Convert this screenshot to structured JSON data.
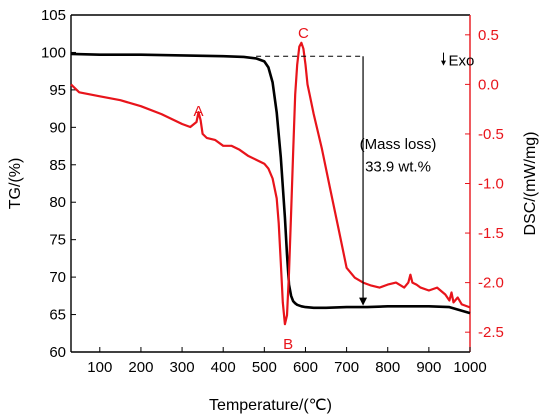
{
  "colors": {
    "tg": "#000000",
    "dsc": "#e8141b",
    "axis": "#000000"
  },
  "chart_data": {
    "type": "line",
    "xlabel": "Temperature/(℃)",
    "ylabel_left": "TG/(%)",
    "ylabel_right": "DSC/(mW/mg)",
    "xlim": [
      30,
      1000
    ],
    "ylim_left": [
      60,
      105
    ],
    "ylim_right": [
      -2.7,
      0.7
    ],
    "x_ticks": [
      100,
      200,
      300,
      400,
      500,
      600,
      700,
      800,
      900,
      1000
    ],
    "y_left_ticks": [
      60,
      65,
      70,
      75,
      80,
      85,
      90,
      95,
      100,
      105
    ],
    "y_right_ticks": [
      -2.5,
      -2.0,
      -1.5,
      -1.0,
      -0.5,
      0.0,
      0.5
    ],
    "y_right_tick_labels": [
      "-2.5",
      "-2.0",
      "-1.5",
      "-1.0",
      "-0.5",
      "0.0",
      "0.5"
    ],
    "grid": false,
    "series": [
      {
        "axis": "left",
        "color": "#000000",
        "x": [
          30,
          100,
          200,
          300,
          400,
          450,
          480,
          500,
          510,
          520,
          530,
          540,
          550,
          555,
          560,
          565,
          570,
          575,
          580,
          590,
          600,
          620,
          650,
          700,
          750,
          800,
          850,
          900,
          950,
          1000
        ],
        "y": [
          99.8,
          99.7,
          99.7,
          99.6,
          99.5,
          99.4,
          99.2,
          98.8,
          98.0,
          96.0,
          92.0,
          86.0,
          78.0,
          73.0,
          69.0,
          67.5,
          66.8,
          66.5,
          66.3,
          66.1,
          66.0,
          65.9,
          65.9,
          66.0,
          66.0,
          66.1,
          66.1,
          66.1,
          66.0,
          65.2
        ]
      },
      {
        "axis": "right",
        "color": "#e8141b",
        "x": [
          30,
          50,
          100,
          150,
          200,
          250,
          300,
          320,
          335,
          340,
          345,
          350,
          360,
          380,
          400,
          420,
          440,
          460,
          480,
          500,
          510,
          520,
          530,
          535,
          540,
          545,
          550,
          555,
          560,
          565,
          570,
          575,
          580,
          585,
          590,
          595,
          600,
          605,
          610,
          620,
          640,
          660,
          680,
          700,
          720,
          740,
          760,
          780,
          800,
          820,
          840,
          850,
          855,
          860,
          870,
          880,
          900,
          920,
          940,
          950,
          955,
          960,
          970,
          980,
          1000
        ],
        "y": [
          0.0,
          -0.08,
          -0.12,
          -0.16,
          -0.22,
          -0.3,
          -0.4,
          -0.43,
          -0.38,
          -0.28,
          -0.36,
          -0.5,
          -0.54,
          -0.56,
          -0.62,
          -0.62,
          -0.66,
          -0.72,
          -0.76,
          -0.8,
          -0.85,
          -0.95,
          -1.15,
          -1.4,
          -1.8,
          -2.2,
          -2.42,
          -2.33,
          -1.9,
          -1.3,
          -0.7,
          -0.1,
          0.2,
          0.38,
          0.42,
          0.36,
          0.2,
          0.0,
          -0.1,
          -0.3,
          -0.65,
          -1.05,
          -1.45,
          -1.85,
          -1.95,
          -2.0,
          -2.03,
          -2.05,
          -2.02,
          -2.0,
          -2.05,
          -2.0,
          -1.92,
          -2.0,
          -2.02,
          -2.05,
          -2.08,
          -2.05,
          -2.12,
          -2.18,
          -2.1,
          -2.2,
          -2.15,
          -2.22,
          -2.25
        ]
      }
    ],
    "reference": {
      "axis": "left",
      "y": 99.5,
      "x_from": 480,
      "x_to": 740
    },
    "arrow": {
      "axis": "left",
      "x": 740,
      "y_from": 99.5,
      "y_to": 66.2
    },
    "annotations": [
      {
        "text": "A",
        "x": 340,
        "y": -0.27,
        "axis": "right",
        "color": "#e8141b"
      },
      {
        "text": "B",
        "x": 558,
        "y": -2.62,
        "axis": "right",
        "color": "#e8141b"
      },
      {
        "text": "C",
        "x": 595,
        "y": 0.52,
        "axis": "right",
        "color": "#e8141b"
      },
      {
        "text": "(Mass loss)",
        "x": 825,
        "y": -0.6,
        "axis": "right",
        "color": "#000000"
      },
      {
        "text": "33.9 wt.%",
        "x": 825,
        "y": -0.83,
        "axis": "right",
        "color": "#000000"
      },
      {
        "text": "Exo",
        "x": 955,
        "y": 0.24,
        "axis": "right",
        "color": "#000000"
      }
    ]
  }
}
